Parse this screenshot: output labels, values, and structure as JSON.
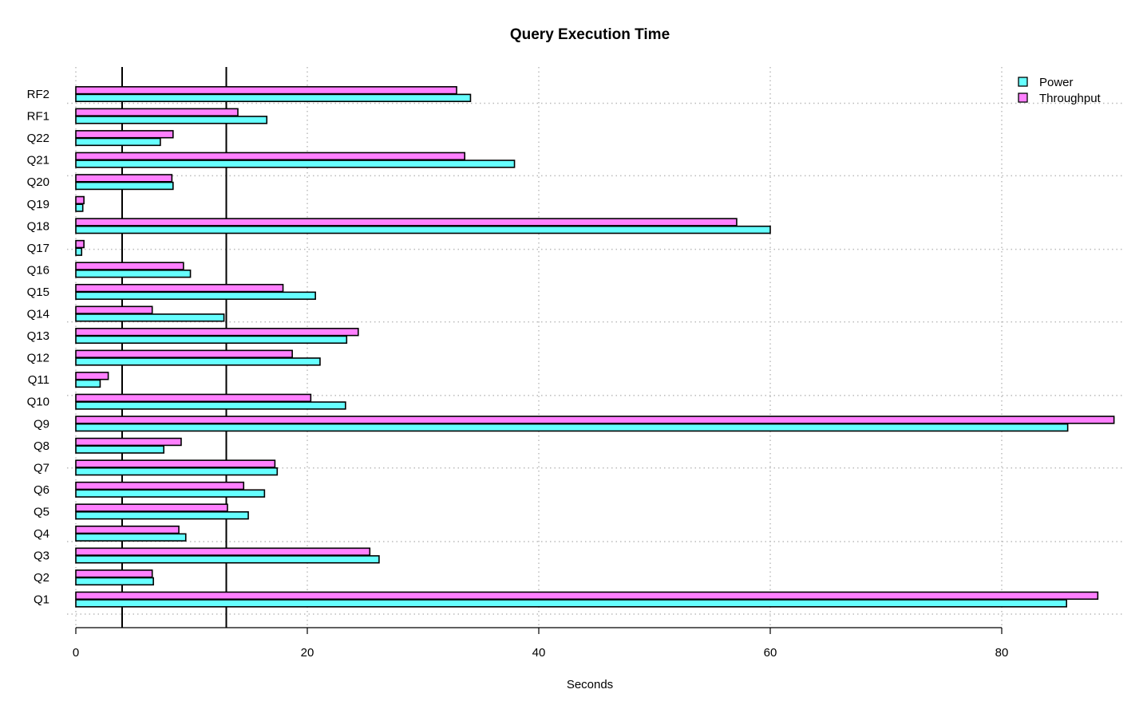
{
  "chart_data": {
    "type": "bar",
    "orientation": "horizontal",
    "title": "Query Execution Time",
    "xlabel": "Seconds",
    "ylabel": "",
    "xlim": [
      0,
      90
    ],
    "xticks": [
      0,
      20,
      40,
      60,
      80
    ],
    "grid": true,
    "legend_position": "top-right",
    "categories": [
      "Q1",
      "Q2",
      "Q3",
      "Q4",
      "Q5",
      "Q6",
      "Q7",
      "Q8",
      "Q9",
      "Q10",
      "Q11",
      "Q12",
      "Q13",
      "Q14",
      "Q15",
      "Q16",
      "Q17",
      "Q18",
      "Q19",
      "Q20",
      "Q21",
      "Q22",
      "RF1",
      "RF2"
    ],
    "series": [
      {
        "name": "Power",
        "color": "#66ffff",
        "values": [
          85.6,
          6.7,
          26.2,
          9.5,
          14.9,
          16.3,
          17.4,
          7.6,
          85.7,
          23.3,
          2.1,
          21.1,
          23.4,
          12.8,
          20.7,
          9.9,
          0.5,
          60.0,
          0.6,
          8.4,
          37.9,
          7.3,
          16.5,
          34.1
        ]
      },
      {
        "name": "Throughput",
        "color": "#ff80ff",
        "values": [
          88.3,
          6.6,
          25.4,
          8.9,
          13.1,
          14.5,
          17.2,
          9.1,
          89.7,
          20.3,
          2.8,
          18.7,
          24.4,
          6.6,
          17.9,
          9.3,
          0.7,
          57.1,
          0.7,
          8.3,
          33.6,
          8.4,
          14.0,
          32.9
        ]
      }
    ],
    "reference_lines_x": [
      4.0,
      13.0
    ]
  }
}
